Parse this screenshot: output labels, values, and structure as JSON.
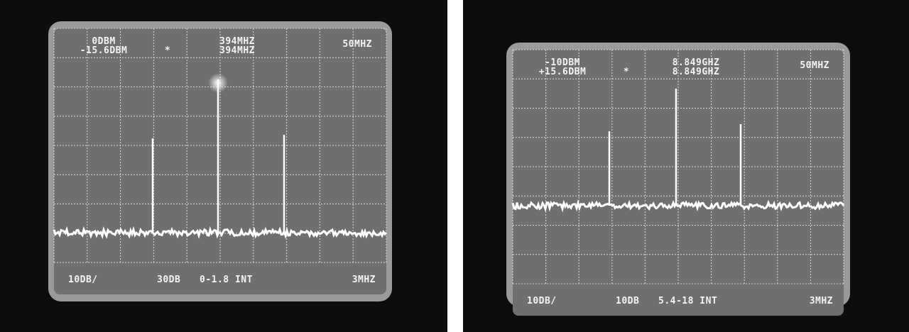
{
  "screens": [
    {
      "ref_level": "0DBM",
      "marker_level": "-15.6DBM",
      "marker_symbol": "*",
      "center_freq": "394MHZ",
      "marker_freq": "394MHZ",
      "span": "50MHZ",
      "scale": "10DB/",
      "attenuation": "30DB",
      "band": "0-1.8 INT",
      "resolution_bw": "3MHZ"
    },
    {
      "ref_level": "-10DBM",
      "marker_level": "+15.6DBM",
      "marker_symbol": "*",
      "center_freq": "8.849GHZ",
      "marker_freq": "8.849GHZ",
      "span": "50MHZ",
      "scale": "10DB/",
      "attenuation": "10DB",
      "band": "5.4-18 INT",
      "resolution_bw": "3MHZ"
    }
  ]
}
